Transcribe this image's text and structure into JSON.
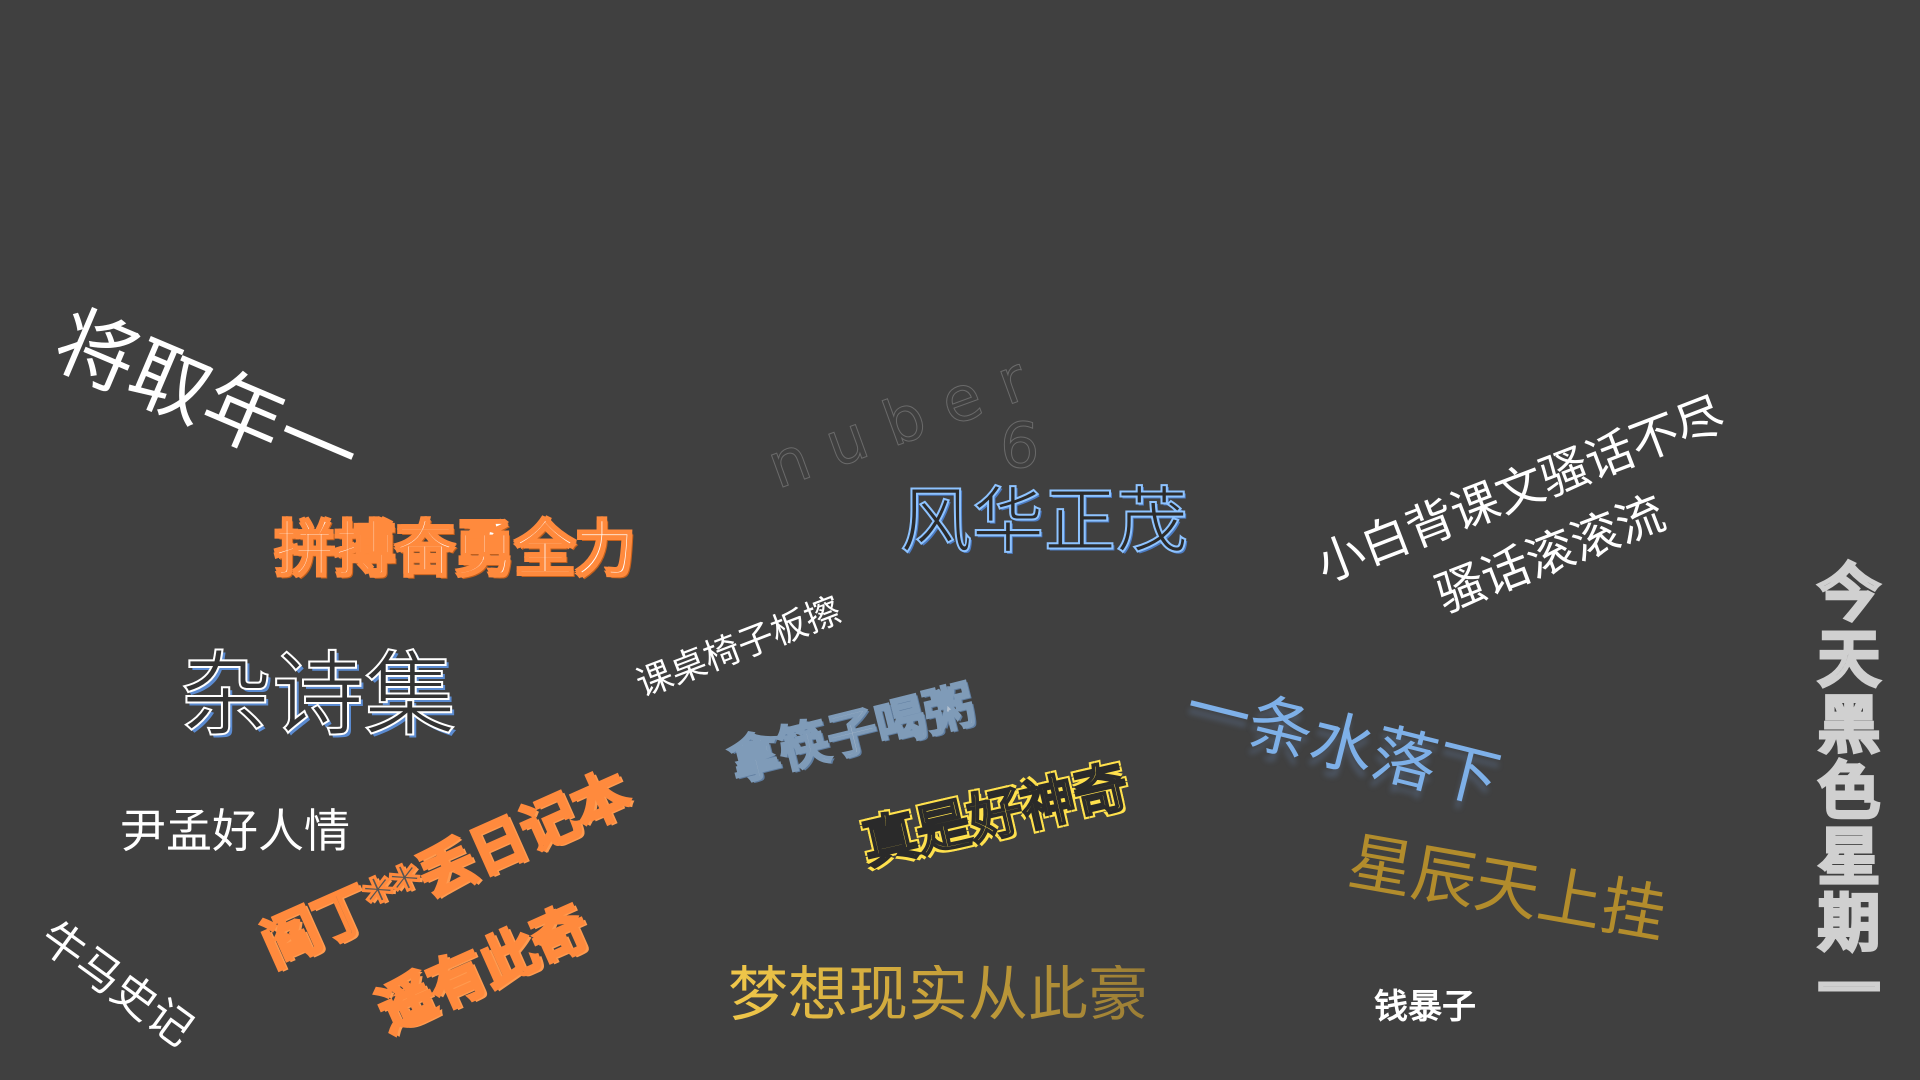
{
  "phrases": {
    "p01": "将取年一",
    "p02": "nuber",
    "p03": "6",
    "p04": "拼搏奋勇全力",
    "p05": "风华正茂",
    "p06": "小白背课文骚话不尽",
    "p07": "骚话滚滚流",
    "p08": "课桌椅子板擦",
    "p09": "杂诗集",
    "p10": "一条水落下",
    "p11": "拿筷子喝粥",
    "p12": "真是好神奇",
    "p13": "尹孟好人情",
    "p14": "阎丁**丢日记本",
    "p15": "遥有此奇",
    "p16": "星辰天上挂",
    "p17": "牛马史记",
    "p18": "梦想现实从此豪",
    "p19": "钱暴子",
    "p20": "今天黑色星期一"
  },
  "colors": {
    "background": "#404040",
    "orange": "#ff8a3d",
    "blue": "#7eb0e8",
    "yellow": "#ffe14d",
    "gold": "#c8a13a",
    "white": "#ffffff"
  }
}
